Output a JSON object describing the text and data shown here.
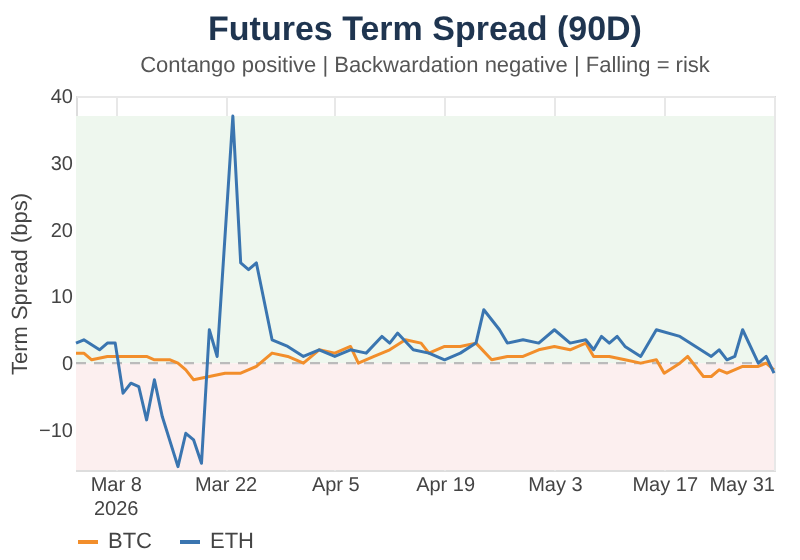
{
  "chart_data": {
    "type": "line",
    "title": "Futures Term Spread (90D)",
    "subtitle": "Contango positive | Backwardation negative | Falling = risk",
    "ylabel": "Term Spread (bps)",
    "xlim": [
      "2026-03-03",
      "2026-05-31"
    ],
    "xticks": [
      {
        "value": "2026-03-08",
        "label": "Mar 8\n2026"
      },
      {
        "value": "2026-03-22",
        "label": "Mar 22"
      },
      {
        "value": "2026-04-05",
        "label": "Apr 5"
      },
      {
        "value": "2026-04-19",
        "label": "Apr 19"
      },
      {
        "value": "2026-05-03",
        "label": "May 3"
      },
      {
        "value": "2026-05-17",
        "label": "May 17"
      },
      {
        "value": "2026-05-31",
        "label": "May 31"
      }
    ],
    "ylim": [
      -16,
      40
    ],
    "yticks": [
      -10,
      0,
      10,
      20,
      30,
      40
    ],
    "grid": true,
    "legend": "bottom",
    "line_style": "solid",
    "marker": "none",
    "ref_lines": [
      {
        "axis": "y",
        "value": 0,
        "label": null,
        "color": "#bbbbbb",
        "line_style": "dashed"
      }
    ],
    "bands": [
      {
        "axis": "y",
        "from": 0,
        "to": 37,
        "label": null,
        "color": "#eef7ee"
      },
      {
        "axis": "y",
        "from": -16,
        "to": 0,
        "label": null,
        "color": "#fcefef"
      }
    ],
    "series": [
      {
        "name": "BTC",
        "color": "#f28e2b",
        "x": [
          "2026-03-03",
          "2026-03-04",
          "2026-03-05",
          "2026-03-07",
          "2026-03-10",
          "2026-03-12",
          "2026-03-13",
          "2026-03-15",
          "2026-03-16",
          "2026-03-17",
          "2026-03-18",
          "2026-03-20",
          "2026-03-22",
          "2026-03-24",
          "2026-03-26",
          "2026-03-28",
          "2026-03-30",
          "2026-04-01",
          "2026-04-03",
          "2026-04-05",
          "2026-04-07",
          "2026-04-08",
          "2026-04-10",
          "2026-04-12",
          "2026-04-14",
          "2026-04-16",
          "2026-04-17",
          "2026-04-19",
          "2026-04-21",
          "2026-04-23",
          "2026-04-25",
          "2026-04-27",
          "2026-04-29",
          "2026-05-01",
          "2026-05-03",
          "2026-05-05",
          "2026-05-07",
          "2026-05-08",
          "2026-05-10",
          "2026-05-12",
          "2026-05-14",
          "2026-05-16",
          "2026-05-17",
          "2026-05-19",
          "2026-05-20",
          "2026-05-22",
          "2026-05-23",
          "2026-05-24",
          "2026-05-25",
          "2026-05-27",
          "2026-05-29",
          "2026-05-30",
          "2026-05-31"
        ],
        "values": [
          1.5,
          1.5,
          0.5,
          1,
          1,
          1,
          0.5,
          0.5,
          0,
          -1,
          -2.5,
          -2,
          -1.5,
          -1.5,
          -0.5,
          1.5,
          1,
          0,
          2,
          1.5,
          2.5,
          0,
          1,
          2,
          3.5,
          3,
          1.5,
          2.5,
          2.5,
          3,
          0.5,
          1,
          1,
          2,
          2.5,
          2,
          3,
          1,
          1,
          0.5,
          0,
          0.5,
          -1.5,
          0,
          1,
          -2,
          -2,
          -1,
          -1.5,
          -0.5,
          -0.5,
          0,
          -1
        ]
      },
      {
        "name": "ETH",
        "color": "#3a75b0",
        "x": [
          "2026-03-03",
          "2026-03-04",
          "2026-03-06",
          "2026-03-07",
          "2026-03-08",
          "2026-03-09",
          "2026-03-10",
          "2026-03-11",
          "2026-03-12",
          "2026-03-13",
          "2026-03-14",
          "2026-03-16",
          "2026-03-17",
          "2026-03-18",
          "2026-03-19",
          "2026-03-20",
          "2026-03-21",
          "2026-03-23",
          "2026-03-24",
          "2026-03-25",
          "2026-03-26",
          "2026-03-28",
          "2026-03-30",
          "2026-04-01",
          "2026-04-03",
          "2026-04-05",
          "2026-04-07",
          "2026-04-09",
          "2026-04-11",
          "2026-04-12",
          "2026-04-13",
          "2026-04-15",
          "2026-04-17",
          "2026-04-19",
          "2026-04-21",
          "2026-04-23",
          "2026-04-24",
          "2026-04-26",
          "2026-04-27",
          "2026-04-29",
          "2026-05-01",
          "2026-05-03",
          "2026-05-05",
          "2026-05-07",
          "2026-05-08",
          "2026-05-09",
          "2026-05-10",
          "2026-05-11",
          "2026-05-12",
          "2026-05-14",
          "2026-05-16",
          "2026-05-19",
          "2026-05-21",
          "2026-05-23",
          "2026-05-24",
          "2026-05-25",
          "2026-05-26",
          "2026-05-27",
          "2026-05-29",
          "2026-05-30",
          "2026-05-31"
        ],
        "values": [
          3,
          3.5,
          2,
          3,
          3,
          -4.5,
          -3,
          -3.5,
          -8.5,
          -2.5,
          -8,
          -15.5,
          -10.5,
          -11.5,
          -15,
          5,
          1,
          37,
          15,
          14,
          15,
          3.5,
          2.5,
          1,
          2,
          1,
          2,
          1.5,
          4,
          3,
          4.5,
          2,
          1.5,
          0.5,
          1.5,
          3,
          8,
          5,
          3,
          3.5,
          3,
          5,
          3,
          3.5,
          2,
          4,
          3,
          4,
          2.5,
          1,
          5,
          4,
          2.5,
          1,
          2,
          0.5,
          1,
          5,
          0,
          1,
          -1.5
        ]
      }
    ]
  }
}
